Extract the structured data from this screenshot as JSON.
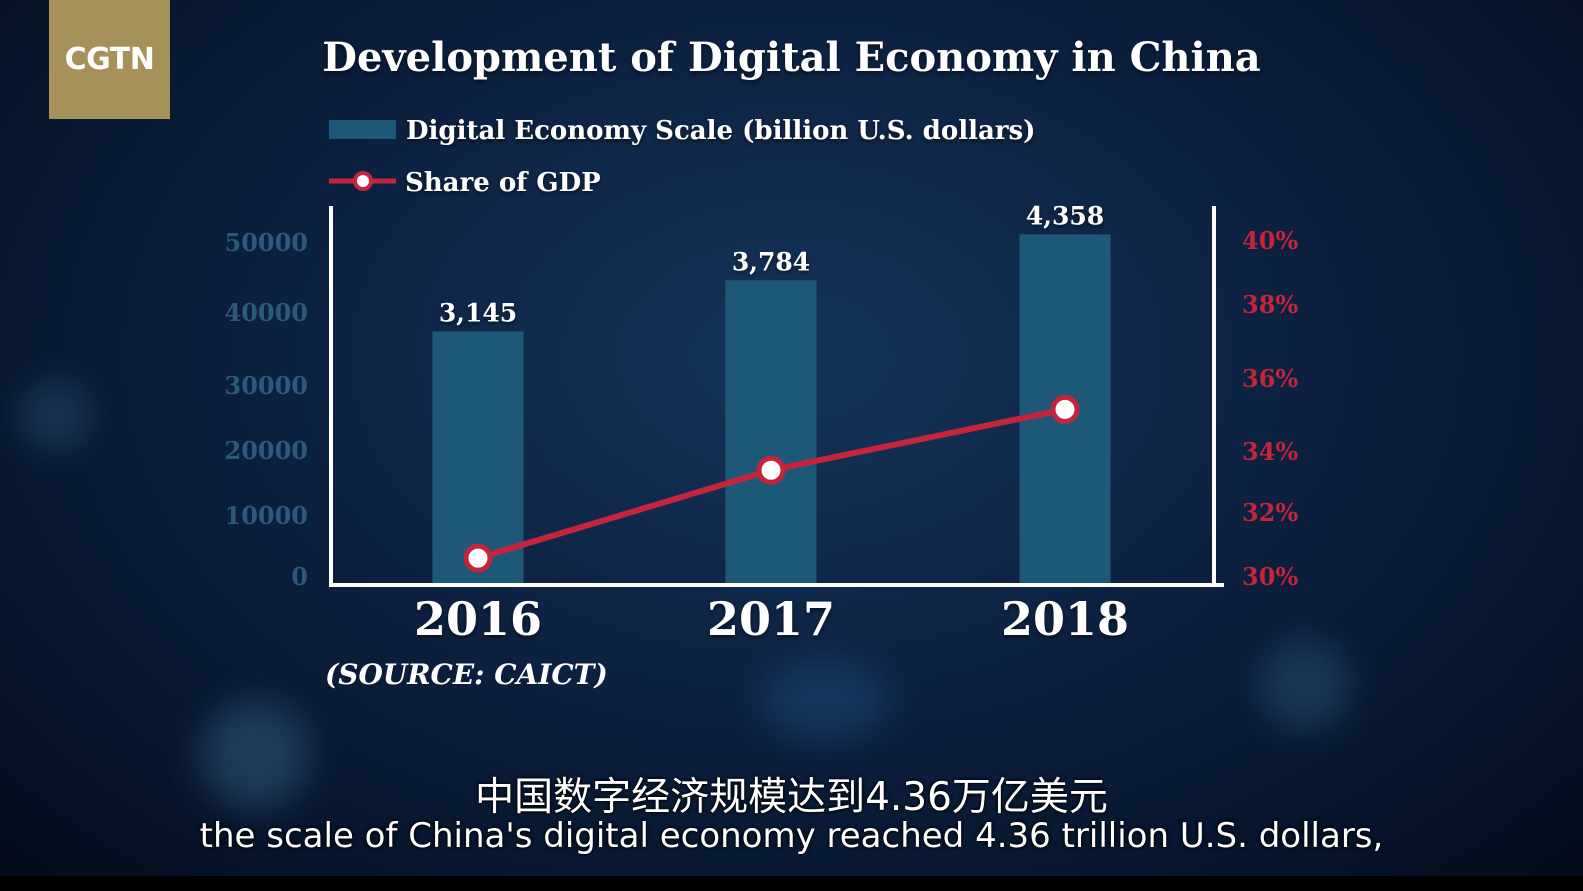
{
  "logo": {
    "text": "CGTN"
  },
  "colors": {
    "bar": "#1e5878",
    "line": "#c4253a",
    "left_axis_text": "#2d5a7c",
    "right_axis_text": "#c4253a",
    "axis": "#ffffff"
  },
  "chart_data": {
    "type": "bar",
    "title": "Development of Digital Economy in China",
    "categories": [
      "2016",
      "2017",
      "2018"
    ],
    "series": [
      {
        "name": "Digital Economy Scale (billion U.S. dollars)",
        "type": "bar",
        "axis": "left",
        "values": [
          3145,
          3784,
          4358
        ],
        "labels": [
          "3,145",
          "3,784",
          "4,358"
        ]
      },
      {
        "name": "Share of GDP",
        "type": "line",
        "axis": "right",
        "values": [
          30.5,
          33.1,
          34.9
        ]
      }
    ],
    "left_axis": {
      "ticks": [
        "0",
        "10000",
        "20000",
        "30000",
        "40000",
        "50000"
      ]
    },
    "right_axis": {
      "ticks": [
        "30%",
        "32%",
        "34%",
        "36%",
        "38%",
        "40%"
      ],
      "ylim": [
        30,
        40
      ]
    },
    "legend_position": "top-left",
    "grid": false,
    "source": "(SOURCE: CAICT)"
  },
  "subtitles": {
    "chinese": "中国数字经济规模达到4.36万亿美元",
    "english": "the scale of China's digital economy reached 4.36 trillion U.S. dollars,"
  }
}
